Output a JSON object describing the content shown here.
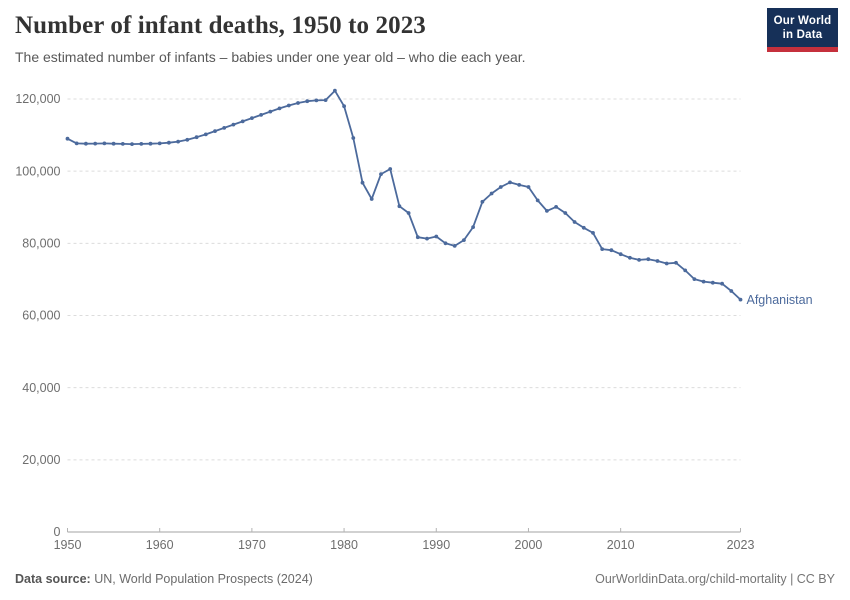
{
  "header": {
    "title": "Number of infant deaths, 1950 to 2023",
    "subtitle": "The estimated number of infants – babies under one year old – who die each year.",
    "logo": {
      "line1": "Our World",
      "line2": "in Data",
      "bg_color": "#163058",
      "accent_color": "#c5303c"
    }
  },
  "chart_data": {
    "type": "line",
    "title": "Number of infant deaths, 1950 to 2023",
    "xlabel": "",
    "ylabel": "",
    "xlim": [
      1950,
      2023
    ],
    "ylim": [
      0,
      120000
    ],
    "grid": "horizontal-dashed",
    "legend_position": "end-of-line-label",
    "x_ticks": [
      1950,
      1960,
      1970,
      1980,
      1990,
      2000,
      2010,
      2023
    ],
    "y_ticks": [
      {
        "value": 120000,
        "label": "120,000"
      },
      {
        "value": 100000,
        "label": "100,000"
      },
      {
        "value": 80000,
        "label": "80,000"
      },
      {
        "value": 60000,
        "label": "60,000"
      },
      {
        "value": 40000,
        "label": "40,000"
      },
      {
        "value": 20000,
        "label": "20,000"
      },
      {
        "value": 0,
        "label": "0"
      }
    ],
    "series": [
      {
        "name": "Afghanistan",
        "color": "#4c6a9c",
        "x": [
          1950,
          1951,
          1952,
          1953,
          1954,
          1955,
          1956,
          1957,
          1958,
          1959,
          1960,
          1961,
          1962,
          1963,
          1964,
          1965,
          1966,
          1967,
          1968,
          1969,
          1970,
          1971,
          1972,
          1973,
          1974,
          1975,
          1976,
          1977,
          1978,
          1979,
          1980,
          1981,
          1982,
          1983,
          1984,
          1985,
          1986,
          1987,
          1988,
          1989,
          1990,
          1991,
          1992,
          1993,
          1994,
          1995,
          1996,
          1997,
          1998,
          1999,
          2000,
          2001,
          2002,
          2003,
          2004,
          2005,
          2006,
          2007,
          2008,
          2009,
          2010,
          2011,
          2012,
          2013,
          2014,
          2015,
          2016,
          2017,
          2018,
          2019,
          2020,
          2021,
          2022,
          2023
        ],
        "values": [
          109000,
          107700,
          107600,
          107650,
          107700,
          107600,
          107550,
          107500,
          107550,
          107600,
          107700,
          107900,
          108200,
          108700,
          109400,
          110200,
          111100,
          112000,
          112900,
          113800,
          114700,
          115600,
          116500,
          117400,
          118200,
          118900,
          119400,
          119600,
          119700,
          122300,
          118000,
          109200,
          96800,
          92300,
          99200,
          100600,
          90300,
          88400,
          81700,
          81300,
          81900,
          80000,
          79300,
          80900,
          84500,
          91500,
          93800,
          95600,
          96900,
          96200,
          95600,
          91900,
          89000,
          90100,
          88400,
          85900,
          84300,
          82900,
          78400,
          78100,
          77000,
          76000,
          75400,
          75600,
          75100,
          74400,
          74600,
          72500,
          70100,
          69400,
          69100,
          68800,
          66800,
          64400
        ]
      }
    ]
  },
  "footer": {
    "source_label": "Data source:",
    "source_text": " UN, World Population Prospects (2024)",
    "credit": "OurWorldinData.org/child-mortality | CC BY"
  }
}
